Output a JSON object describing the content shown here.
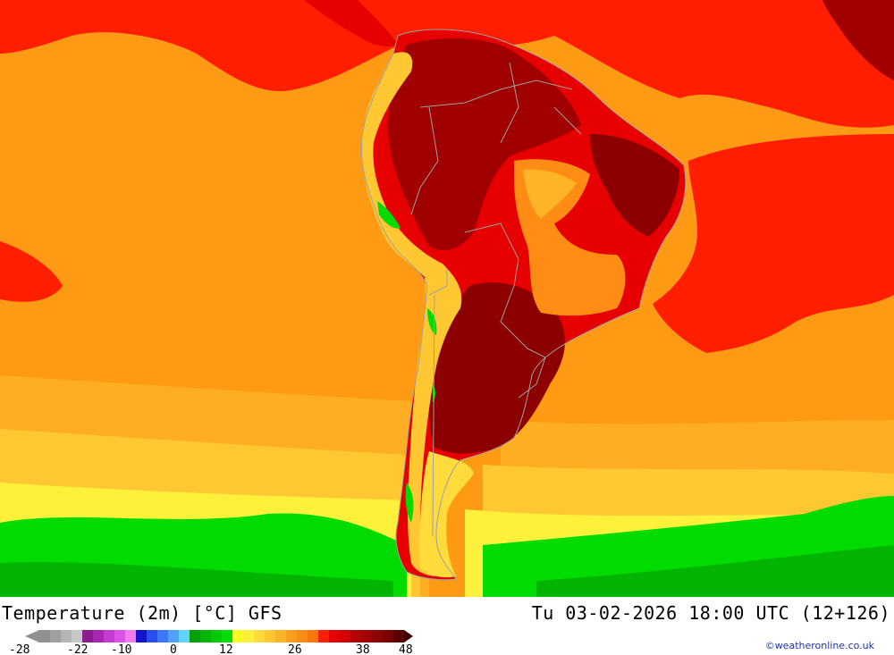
{
  "header": {
    "title": "Temperature (2m) [°C] GFS",
    "valid_time": "Tu 03-02-2026 18:00 UTC (12+126)"
  },
  "legend": {
    "tick_labels": [
      "-28",
      "-22",
      "-10",
      "0",
      "12",
      "26",
      "38",
      "48"
    ],
    "colors": [
      "#909090",
      "#a0a0a0",
      "#b4b4b4",
      "#c8c8c8",
      "#8c1e8c",
      "#a428b4",
      "#c43cd2",
      "#dc50e6",
      "#f07cf0",
      "#1414c8",
      "#2850f0",
      "#3c78ff",
      "#50a0ff",
      "#64d2ff",
      "#00a000",
      "#00b400",
      "#00c800",
      "#00dc00",
      "#ffff28",
      "#fff03c",
      "#ffdc3c",
      "#ffc832",
      "#ffb428",
      "#ffa020",
      "#ff8c14",
      "#ff780a",
      "#ff1e00",
      "#e60000",
      "#d20000",
      "#b40000",
      "#a00000",
      "#8c0000",
      "#780000",
      "#5a0000"
    ]
  },
  "map_colors": {
    "ocean_orange": "#ff9a14",
    "ocean_red": "#ff1e00",
    "land_red": "#e60000",
    "land_dark_red": "#a00000",
    "land_darkest": "#8c0000",
    "orange_plateau": "#ff8c14",
    "yellow_band": "#fff03c",
    "green_south": "#00dc00",
    "green_deep": "#00b400",
    "border_gray": "#a0a0a0"
  },
  "credit": "©weatheronline.co.uk"
}
